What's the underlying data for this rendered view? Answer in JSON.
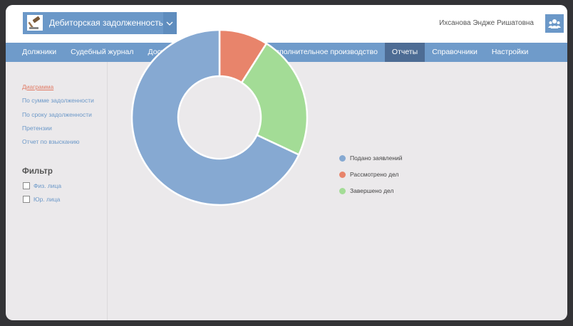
{
  "app": {
    "title": "Дебиторская задолженность",
    "icon": "gavel-icon",
    "caret_icon": "chevron-down-icon"
  },
  "user": {
    "name": "Ихсанова Эндже Ришатовна",
    "avatar_icon": "users-icon"
  },
  "nav": {
    "items": [
      {
        "label": "Должники",
        "active": false
      },
      {
        "label": "Судебный журнал",
        "active": false
      },
      {
        "label": "Досудебное делопроизводство",
        "active": false
      },
      {
        "label": "Исполнительное производство",
        "active": false
      },
      {
        "label": "Отчеты",
        "active": true
      },
      {
        "label": "Справочники",
        "active": false
      },
      {
        "label": "Настройки",
        "active": false
      }
    ]
  },
  "sidebar": {
    "links": [
      {
        "label": "Диаграмма",
        "active": true
      },
      {
        "label": "По сумме задолженности",
        "active": false
      },
      {
        "label": "По сроку задолженности",
        "active": false
      },
      {
        "label": "Претензии",
        "active": false
      },
      {
        "label": "Отчет по взысканию",
        "active": false
      }
    ],
    "filter": {
      "title": "Фильтр",
      "options": [
        {
          "label": "Физ. лица",
          "checked": false
        },
        {
          "label": "Юр. лица",
          "checked": false
        }
      ]
    }
  },
  "colors": {
    "accent": "#6b98c8",
    "active_nav": "#4d6c94",
    "link_active": "#e07a64"
  },
  "chart_data": {
    "type": "pie",
    "donut": true,
    "categories": [
      "Подано заявлений",
      "Рассмотрено дел",
      "Завершено дел"
    ],
    "values": [
      68,
      9,
      23
    ],
    "colors": [
      "#86a9d2",
      "#e8846b",
      "#a3dc96"
    ],
    "legend_position": "right"
  }
}
